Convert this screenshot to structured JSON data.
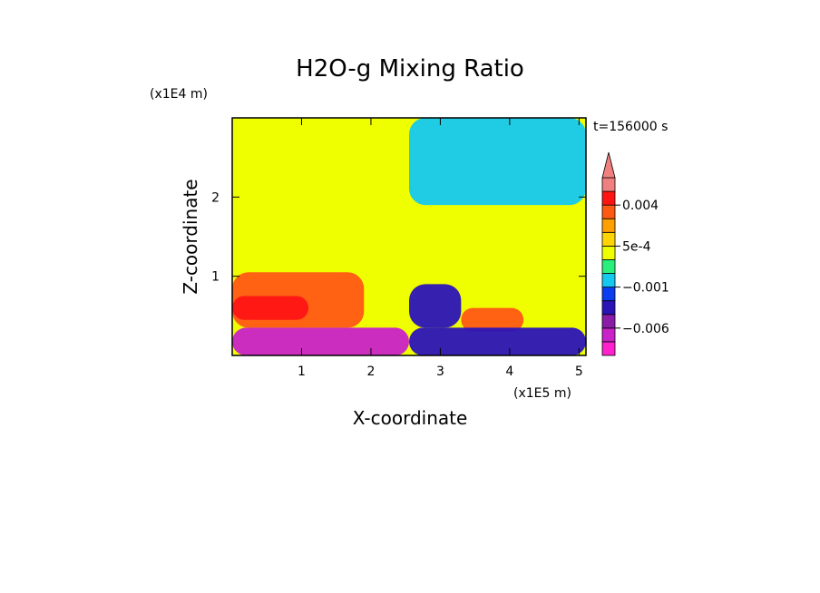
{
  "chart_data": {
    "type": "heatmap",
    "title": "H2O-g Mixing Ratio",
    "xlabel": "X-coordinate",
    "ylabel": "Z-coordinate",
    "x_multiplier_label": "(x1E5 m)",
    "y_multiplier_label": "(x1E4 m)",
    "time_label": "t=156000 s",
    "xlim": [
      0,
      5.1
    ],
    "ylim": [
      0,
      3.0
    ],
    "x_ticks": [
      1,
      2,
      3,
      4,
      5
    ],
    "y_ticks": [
      1,
      2
    ],
    "colorbar": {
      "levels": [
        -0.009,
        -0.008,
        -0.006,
        -0.004,
        -0.002,
        -0.001,
        -0.0005,
        0,
        0.0005,
        0.001,
        0.002,
        0.004,
        0.006
      ],
      "colors": [
        "#ff22cc",
        "#c822c8",
        "#8a1ca8",
        "#2a14b8",
        "#0a3cf0",
        "#14c8f0",
        "#28f07a",
        "#f0ff00",
        "#ffd400",
        "#ffa000",
        "#ff5a14",
        "#ff1414",
        "#f08080"
      ],
      "tick_labels": [
        {
          "value": 0.004,
          "label": "0.004"
        },
        {
          "value": 0.0005,
          "label": "5e-4"
        },
        {
          "value": -0.001,
          "label": "−0.001"
        },
        {
          "value": -0.006,
          "label": "−0.006"
        }
      ],
      "extend": "max"
    },
    "background_value": 0.0002,
    "regions": [
      {
        "label": "left low-level positive plume",
        "x": [
          0,
          1.9
        ],
        "z": [
          0.35,
          1.05
        ],
        "value": 0.002
      },
      {
        "label": "left core maximum",
        "x": [
          0,
          1.1
        ],
        "z": [
          0.45,
          0.75
        ],
        "value": 0.004
      },
      {
        "label": "left surface negative layer",
        "x": [
          0,
          2.55
        ],
        "z": [
          0,
          0.35
        ],
        "value": -0.008
      },
      {
        "label": "right upper mottled layer",
        "x": [
          2.55,
          5.1
        ],
        "z": [
          1.9,
          3.0
        ],
        "value": -0.0007
      },
      {
        "label": "right low-level negative wedge",
        "x": [
          2.55,
          3.3
        ],
        "z": [
          0.35,
          0.9
        ],
        "value": -0.004
      },
      {
        "label": "right mid positive blob",
        "x": [
          3.3,
          4.2
        ],
        "z": [
          0.3,
          0.6
        ],
        "value": 0.002
      },
      {
        "label": "right surface negative layer",
        "x": [
          2.55,
          5.1
        ],
        "z": [
          0,
          0.35
        ],
        "value": -0.004
      }
    ]
  }
}
